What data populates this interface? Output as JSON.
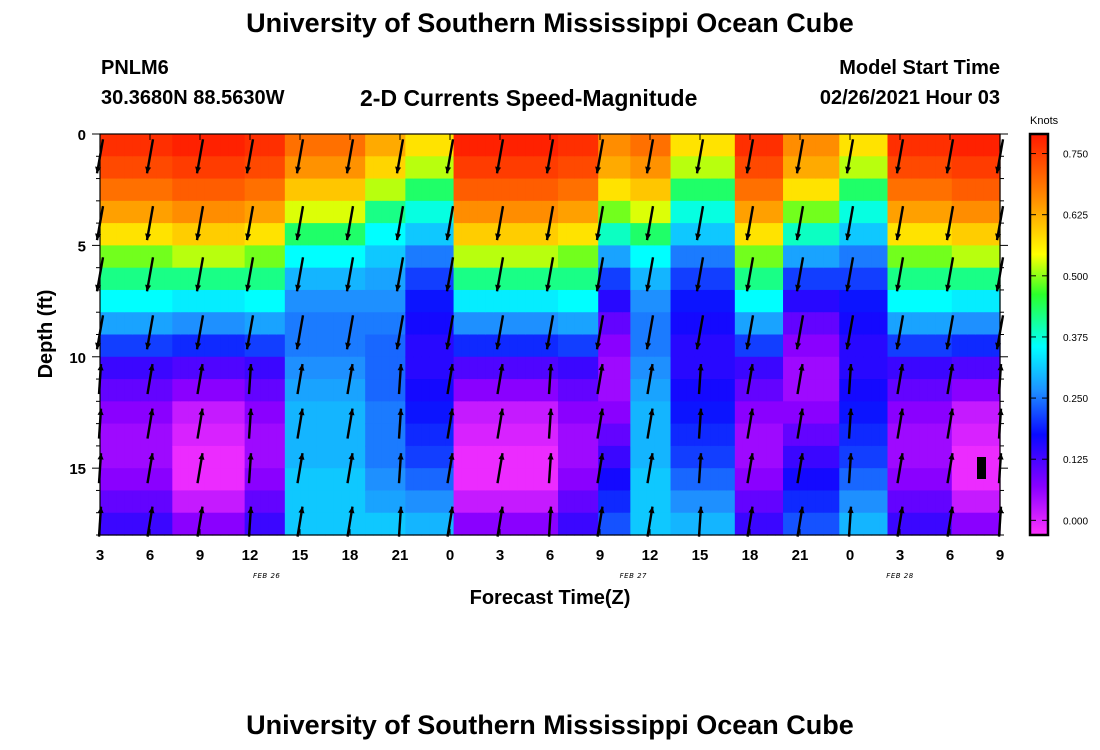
{
  "header": {
    "title": "University of Southern Mississippi Ocean Cube",
    "footer_title": "University of Southern Mississippi Ocean Cube",
    "station": "PNLM6",
    "location": "30.3680N 88.5630W",
    "subtitle": "2-D Currents Speed-Magnitude",
    "model_label": "Model Start Time",
    "model_time": "02/26/2021 Hour 03"
  },
  "chart_data": {
    "type": "heatmap",
    "title": "2-D Currents Speed-Magnitude",
    "xlabel": "Forecast Time(Z)",
    "ylabel": "Depth (ft)",
    "x_tick_labels": [
      "3",
      "6",
      "9",
      "12",
      "15",
      "18",
      "21",
      "0",
      "3",
      "6",
      "9",
      "12",
      "15",
      "18",
      "21",
      "0",
      "3",
      "6",
      "9"
    ],
    "x_forecast_hours": [
      0,
      3,
      6,
      9,
      12,
      15,
      18,
      21,
      24,
      27,
      30,
      33,
      36,
      39,
      42,
      45,
      48,
      51,
      54
    ],
    "date_labels": [
      {
        "text": "FEB 26",
        "hour": 10
      },
      {
        "text": "FEB 27",
        "hour": 32
      },
      {
        "text": "FEB 28",
        "hour": 48
      }
    ],
    "y_ticks": [
      0,
      5,
      10,
      15
    ],
    "ylim": [
      0,
      18
    ],
    "xlim": [
      0,
      54
    ],
    "colorbar": {
      "title": "Knots",
      "ticks": [
        "0.750",
        "0.625",
        "0.500",
        "0.375",
        "0.250",
        "0.125",
        "0.000"
      ],
      "range": [
        -0.03,
        0.79
      ]
    },
    "depth_rows_ft": [
      0.5,
      1.5,
      2.5,
      3.5,
      4.5,
      5.5,
      6.5,
      7.5,
      8.5,
      9.5,
      10.5,
      11.5,
      12.5,
      13.5,
      14.5,
      15.5,
      16.5,
      17.5
    ],
    "speed_profiles_knots": {
      "A": [
        0.72,
        0.68,
        0.62,
        0.52,
        0.42,
        0.34,
        0.29,
        0.25,
        0.2,
        0.15,
        0.1,
        0.08,
        0.06,
        0.05,
        0.05,
        0.06,
        0.08,
        0.1
      ],
      "B": [
        0.74,
        0.7,
        0.65,
        0.56,
        0.45,
        0.36,
        0.29,
        0.24,
        0.19,
        0.14,
        0.09,
        0.06,
        0.03,
        0.02,
        0.01,
        0.01,
        0.03,
        0.06
      ],
      "C": [
        0.62,
        0.55,
        0.46,
        0.37,
        0.3,
        0.25,
        0.21,
        0.19,
        0.18,
        0.18,
        0.19,
        0.2,
        0.21,
        0.21,
        0.21,
        0.22,
        0.22,
        0.22
      ],
      "D": [
        0.5,
        0.44,
        0.36,
        0.29,
        0.25,
        0.22,
        0.2,
        0.19,
        0.18,
        0.17,
        0.17,
        0.17,
        0.18,
        0.18,
        0.18,
        0.19,
        0.2,
        0.22
      ],
      "E": [
        0.42,
        0.36,
        0.3,
        0.26,
        0.22,
        0.18,
        0.15,
        0.13,
        0.12,
        0.11,
        0.11,
        0.12,
        0.13,
        0.14,
        0.15,
        0.17,
        0.19,
        0.21
      ],
      "F": [
        0.56,
        0.5,
        0.42,
        0.34,
        0.27,
        0.2,
        0.15,
        0.11,
        0.08,
        0.06,
        0.05,
        0.05,
        0.06,
        0.08,
        0.1,
        0.12,
        0.14,
        0.16
      ]
    },
    "column_profiles": [
      "A",
      "A",
      "A",
      "A",
      "A",
      "A",
      "A",
      "A",
      "A",
      "B",
      "B",
      "B",
      "B",
      "B",
      "B",
      "B",
      "B",
      "B",
      "A",
      "A",
      "A",
      "A",
      "A",
      "C",
      "C",
      "C",
      "C",
      "C",
      "C",
      "C",
      "C",
      "C",
      "C",
      "D",
      "D",
      "D",
      "D",
      "D",
      "E",
      "E",
      "E",
      "E",
      "E",
      "E",
      "B",
      "B",
      "B",
      "B",
      "B",
      "B",
      "B",
      "B",
      "B",
      "B",
      "B",
      "B",
      "B",
      "A",
      "A",
      "A",
      "A",
      "A",
      "F",
      "F",
      "F",
      "F",
      "C",
      "C",
      "C",
      "C",
      "C",
      "E",
      "E",
      "E",
      "E",
      "E",
      "E",
      "E",
      "E",
      "A",
      "A",
      "A",
      "A",
      "A",
      "A",
      "F",
      "F",
      "F",
      "F",
      "F",
      "F",
      "F",
      "E",
      "E",
      "E",
      "E",
      "E",
      "E",
      "A",
      "A",
      "A",
      "A",
      "A",
      "A",
      "A",
      "A",
      "B",
      "B",
      "B",
      "B",
      "B",
      "B"
    ],
    "vector_hours": [
      0,
      3,
      6,
      9,
      12,
      15,
      18,
      21,
      24,
      27,
      30,
      33,
      36,
      39,
      42,
      45,
      48,
      51,
      54
    ],
    "vector_depths_ft": [
      1,
      4,
      6.3,
      8.9,
      11,
      13,
      15,
      17.4
    ],
    "vector_direction_note": "near-surface currents directed southward (down), deeper currents directed northward (up)"
  }
}
